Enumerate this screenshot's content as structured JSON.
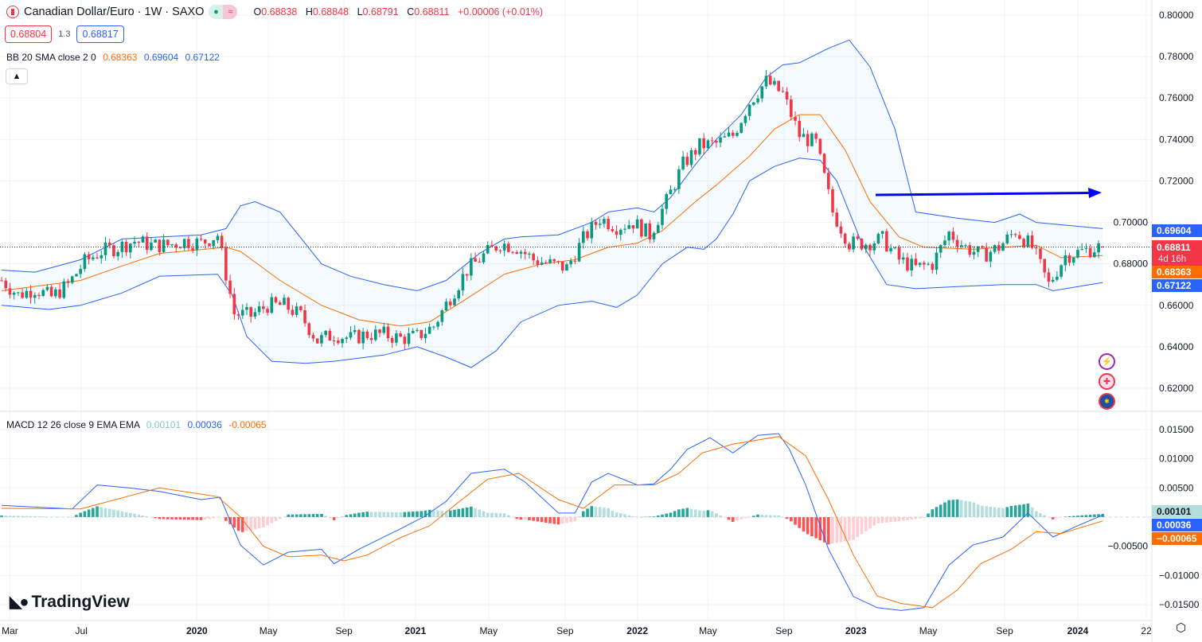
{
  "header": {
    "title": "Canadian Dollar/Euro · 1W · SAXO",
    "status_icons": [
      "market-open-dot-icon",
      "approx-icon"
    ],
    "ohlc": {
      "o_label": "O",
      "o": "0.68838",
      "h_label": "H",
      "h": "0.68848",
      "l_label": "L",
      "l": "0.68791",
      "c_label": "C",
      "c": "0.68811",
      "change": "+0.00006 (+0.01%)"
    },
    "sell_price": "0.68804",
    "spread": "1.3",
    "buy_price": "0.68817"
  },
  "bb_legend": {
    "label": "BB 20 SMA close 2 0",
    "basis": "0.68363",
    "upper": "0.69604",
    "lower": "0.67122"
  },
  "macd_legend": {
    "label": "MACD 12 26 close 9 EMA EMA",
    "hist": "0.00101",
    "macd": "0.00036",
    "signal": "-0.00065"
  },
  "price_labels": {
    "upper": "0.69604",
    "last": "0.68811",
    "countdown": "4d 16h",
    "basis": "0.68363",
    "lower": "0.67122"
  },
  "macd_labels": {
    "hist": "0.00101",
    "macd": "0.00036",
    "signal": "-0.00065"
  },
  "logo": "TradingView",
  "colors": {
    "up": "#089981",
    "down": "#f23645",
    "band": "#2962ff",
    "basis": "#ff6d00",
    "arrow": "#0000ff"
  },
  "chart_data": {
    "type": "candlestick",
    "title": "Canadian Dollar/Euro · 1W · SAXO",
    "x_unit": "week index",
    "x_ticks": [
      {
        "label": "Mar",
        "week": 2
      },
      {
        "label": "Jul",
        "week": 19.2
      },
      {
        "label": "2020",
        "week": 47
      },
      {
        "label": "May",
        "week": 64.2
      },
      {
        "label": "Sep",
        "week": 82.4
      },
      {
        "label": "2021",
        "week": 99.6
      },
      {
        "label": "May",
        "week": 117.2
      },
      {
        "label": "Sep",
        "week": 135.6
      },
      {
        "label": "2022",
        "week": 153
      },
      {
        "label": "May",
        "week": 170
      },
      {
        "label": "Sep",
        "week": 188.3
      },
      {
        "label": "2023",
        "week": 205.6
      },
      {
        "label": "May",
        "week": 223
      },
      {
        "label": "Sep",
        "week": 241.4
      },
      {
        "label": "2024",
        "week": 259
      },
      {
        "label": "22",
        "week": 275.5
      }
    ],
    "y_ticks": [
      "0.80000",
      "0.78000",
      "0.76000",
      "0.74000",
      "0.72000",
      "0.70000",
      "0.68000",
      "0.66000",
      "0.64000",
      "0.62000"
    ],
    "ylim": [
      0.6,
      0.807
    ],
    "close_every_4_weeks": [
      0.672,
      0.665,
      0.668,
      0.664,
      0.67,
      0.681,
      0.686,
      0.688,
      0.691,
      0.689,
      0.689,
      0.691,
      0.69,
      0.694,
      0.656,
      0.655,
      0.66,
      0.66,
      0.655,
      0.643,
      0.646,
      0.644,
      0.646,
      0.646,
      0.644,
      0.645,
      0.65,
      0.664,
      0.677,
      0.684,
      0.69,
      0.688,
      0.682,
      0.68,
      0.678,
      0.692,
      0.702,
      0.698,
      0.7,
      0.694,
      0.71,
      0.728,
      0.737,
      0.738,
      0.742,
      0.758,
      0.768,
      0.762,
      0.742,
      0.738,
      0.705,
      0.69,
      0.69,
      0.692,
      0.682,
      0.678,
      0.68,
      0.695,
      0.688,
      0.684,
      0.688,
      0.696,
      0.688,
      0.67,
      0.684,
      0.686,
      0.688
    ],
    "last_bar": {
      "open": 0.68838,
      "high": 0.68848,
      "low": 0.68791,
      "close": 0.68811
    },
    "bb_upper": [
      [
        0,
        0.677
      ],
      [
        8,
        0.676
      ],
      [
        19,
        0.682
      ],
      [
        29,
        0.692
      ],
      [
        48,
        0.694
      ],
      [
        54,
        0.697
      ],
      [
        57.5,
        0.708
      ],
      [
        61,
        0.71
      ],
      [
        67,
        0.705
      ],
      [
        73,
        0.69
      ],
      [
        77,
        0.68
      ],
      [
        84,
        0.674
      ],
      [
        92,
        0.67
      ],
      [
        100,
        0.667
      ],
      [
        107,
        0.672
      ],
      [
        115,
        0.685
      ],
      [
        121,
        0.692
      ],
      [
        125,
        0.693
      ],
      [
        134,
        0.694
      ],
      [
        142,
        0.7
      ],
      [
        146,
        0.705
      ],
      [
        153,
        0.707
      ],
      [
        157,
        0.705
      ],
      [
        161,
        0.712
      ],
      [
        167,
        0.728
      ],
      [
        172,
        0.74
      ],
      [
        178,
        0.752
      ],
      [
        184,
        0.77
      ],
      [
        188,
        0.776
      ],
      [
        192,
        0.777
      ],
      [
        199,
        0.784
      ],
      [
        204,
        0.788
      ],
      [
        209,
        0.775
      ],
      [
        215,
        0.745
      ],
      [
        220,
        0.705
      ],
      [
        230,
        0.702
      ],
      [
        239,
        0.7
      ],
      [
        245,
        0.704
      ],
      [
        249,
        0.7
      ],
      [
        265,
        0.697
      ]
    ],
    "bb_basis": [
      [
        0,
        0.667
      ],
      [
        19,
        0.672
      ],
      [
        29,
        0.679
      ],
      [
        38,
        0.685
      ],
      [
        54,
        0.688
      ],
      [
        57.5,
        0.686
      ],
      [
        67,
        0.672
      ],
      [
        77,
        0.66
      ],
      [
        86,
        0.653
      ],
      [
        96,
        0.65
      ],
      [
        103,
        0.652
      ],
      [
        111,
        0.662
      ],
      [
        121,
        0.675
      ],
      [
        130,
        0.68
      ],
      [
        138,
        0.682
      ],
      [
        146,
        0.688
      ],
      [
        153,
        0.69
      ],
      [
        159,
        0.696
      ],
      [
        167,
        0.71
      ],
      [
        172,
        0.718
      ],
      [
        180,
        0.732
      ],
      [
        186,
        0.745
      ],
      [
        192,
        0.752
      ],
      [
        197,
        0.752
      ],
      [
        203,
        0.735
      ],
      [
        209,
        0.71
      ],
      [
        216,
        0.693
      ],
      [
        222,
        0.688
      ],
      [
        234,
        0.687
      ],
      [
        241,
        0.688
      ],
      [
        249,
        0.689
      ],
      [
        255,
        0.683
      ],
      [
        265,
        0.684
      ]
    ],
    "bb_lower": [
      [
        0,
        0.66
      ],
      [
        11.5,
        0.658
      ],
      [
        19,
        0.66
      ],
      [
        29,
        0.666
      ],
      [
        38,
        0.674
      ],
      [
        52,
        0.675
      ],
      [
        55.5,
        0.665
      ],
      [
        59,
        0.645
      ],
      [
        65,
        0.633
      ],
      [
        73,
        0.632
      ],
      [
        80,
        0.633
      ],
      [
        92,
        0.636
      ],
      [
        100,
        0.64
      ],
      [
        107,
        0.635
      ],
      [
        113,
        0.63
      ],
      [
        119,
        0.638
      ],
      [
        125,
        0.652
      ],
      [
        134,
        0.66
      ],
      [
        142,
        0.662
      ],
      [
        148,
        0.659
      ],
      [
        153,
        0.665
      ],
      [
        159,
        0.68
      ],
      [
        165,
        0.688
      ],
      [
        169,
        0.687
      ],
      [
        172,
        0.692
      ],
      [
        176,
        0.704
      ],
      [
        180,
        0.72
      ],
      [
        186,
        0.727
      ],
      [
        192,
        0.731
      ],
      [
        197,
        0.73
      ],
      [
        201,
        0.72
      ],
      [
        207,
        0.69
      ],
      [
        213,
        0.67
      ],
      [
        220,
        0.668
      ],
      [
        230,
        0.669
      ],
      [
        241,
        0.67
      ],
      [
        249,
        0.67
      ],
      [
        253,
        0.667
      ],
      [
        265,
        0.671
      ]
    ],
    "macd": {
      "y_ticks": [
        "0.01500",
        "0.01000",
        "0.00500",
        "-0.00500",
        "-0.01000",
        "-0.01500"
      ],
      "ylim": [
        -0.017,
        0.0165
      ],
      "macd_line": [
        [
          0,
          0.002
        ],
        [
          17,
          0.0014
        ],
        [
          23,
          0.0055
        ],
        [
          30.6,
          0.005
        ],
        [
          38,
          0.0044
        ],
        [
          48,
          0.003
        ],
        [
          52.6,
          0.0034
        ],
        [
          57.5,
          -0.0048
        ],
        [
          63,
          -0.0082
        ],
        [
          69,
          -0.006
        ],
        [
          77,
          -0.0055
        ],
        [
          80,
          -0.008
        ],
        [
          86,
          -0.0055
        ],
        [
          96,
          -0.002
        ],
        [
          101.5,
          0
        ],
        [
          107,
          0.0027
        ],
        [
          113,
          0.0075
        ],
        [
          121,
          0.0082
        ],
        [
          126,
          0.006
        ],
        [
          134,
          0.0007
        ],
        [
          138,
          0.0007
        ],
        [
          142,
          0.006
        ],
        [
          146,
          0.0075
        ],
        [
          153,
          0.0055
        ],
        [
          157,
          0.0057
        ],
        [
          161,
          0.0082
        ],
        [
          165,
          0.0116
        ],
        [
          170.5,
          0.0136
        ],
        [
          176,
          0.011
        ],
        [
          182,
          0.014
        ],
        [
          187,
          0.0143
        ],
        [
          189.6,
          0.0116
        ],
        [
          193.5,
          0.0055
        ],
        [
          199,
          -0.0055
        ],
        [
          205,
          -0.0136
        ],
        [
          210.7,
          -0.0155
        ],
        [
          216.5,
          -0.016
        ],
        [
          222,
          -0.0155
        ],
        [
          228,
          -0.0082
        ],
        [
          233.7,
          -0.0048
        ],
        [
          241,
          -0.0034
        ],
        [
          247,
          0.0007
        ],
        [
          253,
          -0.0034
        ],
        [
          258.6,
          -0.0016
        ],
        [
          265,
          0.00036
        ]
      ],
      "signal_line": [
        [
          0,
          0.0015
        ],
        [
          19,
          0.0014
        ],
        [
          38,
          0.005
        ],
        [
          52,
          0.0035
        ],
        [
          57.5,
          0
        ],
        [
          63,
          -0.005
        ],
        [
          69,
          -0.0068
        ],
        [
          77,
          -0.0065
        ],
        [
          82.4,
          -0.0075
        ],
        [
          88,
          -0.0065
        ],
        [
          96,
          -0.0035
        ],
        [
          103,
          -0.0015
        ],
        [
          109,
          0.002
        ],
        [
          117,
          0.0065
        ],
        [
          124.5,
          0.0075
        ],
        [
          134,
          0.003
        ],
        [
          140,
          0.0015
        ],
        [
          147.5,
          0.0055
        ],
        [
          157,
          0.0055
        ],
        [
          163,
          0.0075
        ],
        [
          168.6,
          0.011
        ],
        [
          176,
          0.0125
        ],
        [
          187,
          0.0138
        ],
        [
          193.5,
          0.0105
        ],
        [
          199,
          0.003
        ],
        [
          205,
          -0.0065
        ],
        [
          210.7,
          -0.0135
        ],
        [
          216.5,
          -0.0148
        ],
        [
          224,
          -0.0155
        ],
        [
          230,
          -0.0125
        ],
        [
          235.6,
          -0.008
        ],
        [
          243,
          -0.0055
        ],
        [
          249,
          -0.0025
        ],
        [
          255,
          -0.0028
        ],
        [
          265,
          -0.00065
        ]
      ]
    }
  }
}
